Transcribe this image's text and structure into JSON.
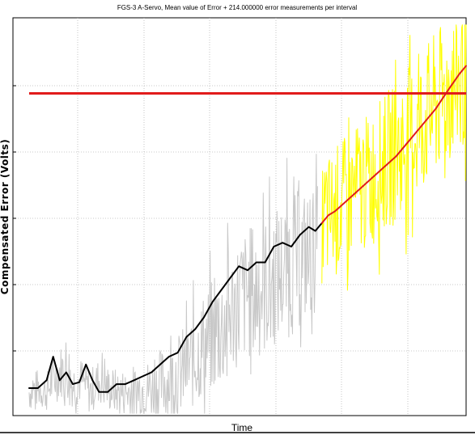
{
  "chart_data": {
    "type": "line",
    "title": "FGS-3 A-Servo, Mean value of Error + 214.000000 error measurements per interval",
    "xlabel": "Time",
    "ylabel": "Compensated Error (Volts)",
    "xlim": [
      0,
      1
    ],
    "ylim": [
      0,
      1
    ],
    "grid": true,
    "legend": "none",
    "colors": {
      "raw_early": "#c8c8c8",
      "raw_late": "#ffff00",
      "mean_early": "#000000",
      "mean_late": "#e11b1b",
      "reference": "#e11b1b",
      "grid": "#b8b8b8",
      "axes": "#000000"
    },
    "series": [
      {
        "role": "raw-early",
        "x": [
          0.0,
          0.02,
          0.04,
          0.06,
          0.08,
          0.1,
          0.12,
          0.14,
          0.16,
          0.18,
          0.2,
          0.22,
          0.24,
          0.26,
          0.28,
          0.3,
          0.32,
          0.34,
          0.36,
          0.38,
          0.4,
          0.42,
          0.44,
          0.46,
          0.48,
          0.5,
          0.52,
          0.54,
          0.56,
          0.58,
          0.6,
          0.62,
          0.64,
          0.66
        ],
        "y": [
          0.06,
          0.07,
          0.06,
          0.1,
          0.12,
          0.08,
          0.09,
          0.06,
          0.09,
          0.07,
          0.06,
          0.06,
          0.06,
          0.07,
          0.07,
          0.08,
          0.09,
          0.1,
          0.12,
          0.15,
          0.18,
          0.2,
          0.22,
          0.26,
          0.29,
          0.31,
          0.32,
          0.33,
          0.35,
          0.37,
          0.38,
          0.4,
          0.41,
          0.43
        ],
        "band": [
          0.05,
          0.05,
          0.05,
          0.07,
          0.07,
          0.06,
          0.06,
          0.06,
          0.06,
          0.06,
          0.06,
          0.06,
          0.07,
          0.07,
          0.08,
          0.09,
          0.1,
          0.11,
          0.12,
          0.13,
          0.14,
          0.15,
          0.16,
          0.16,
          0.17,
          0.17,
          0.18,
          0.18,
          0.18,
          0.18,
          0.18,
          0.18,
          0.17,
          0.16
        ]
      },
      {
        "role": "mean-early",
        "x": [
          0.0,
          0.02,
          0.04,
          0.055,
          0.07,
          0.085,
          0.1,
          0.115,
          0.13,
          0.145,
          0.16,
          0.18,
          0.2,
          0.22,
          0.24,
          0.26,
          0.28,
          0.3,
          0.32,
          0.34,
          0.36,
          0.38,
          0.4,
          0.42,
          0.44,
          0.46,
          0.48,
          0.5,
          0.52,
          0.54,
          0.56,
          0.58,
          0.6,
          0.62,
          0.64,
          0.655,
          0.67
        ],
        "y": [
          0.07,
          0.07,
          0.09,
          0.15,
          0.09,
          0.11,
          0.08,
          0.085,
          0.13,
          0.09,
          0.06,
          0.06,
          0.08,
          0.08,
          0.09,
          0.1,
          0.11,
          0.13,
          0.15,
          0.16,
          0.2,
          0.22,
          0.25,
          0.29,
          0.32,
          0.35,
          0.38,
          0.37,
          0.39,
          0.39,
          0.43,
          0.44,
          0.43,
          0.46,
          0.48,
          0.47,
          0.49
        ]
      },
      {
        "role": "raw-late",
        "x": [
          0.67,
          0.7,
          0.73,
          0.76,
          0.79,
          0.82,
          0.85,
          0.88,
          0.91,
          0.94,
          0.97,
          1.0
        ],
        "y": [
          0.49,
          0.52,
          0.55,
          0.58,
          0.61,
          0.65,
          0.68,
          0.72,
          0.76,
          0.8,
          0.84,
          0.89
        ],
        "band": [
          0.16,
          0.17,
          0.17,
          0.17,
          0.18,
          0.18,
          0.18,
          0.19,
          0.19,
          0.19,
          0.2,
          0.2
        ]
      },
      {
        "role": "mean-late",
        "x": [
          0.67,
          0.685,
          0.7,
          0.72,
          0.75,
          0.78,
          0.81,
          0.84,
          0.87,
          0.9,
          0.93,
          0.96,
          0.985,
          1.0
        ],
        "y": [
          0.49,
          0.51,
          0.52,
          0.54,
          0.57,
          0.6,
          0.63,
          0.66,
          0.7,
          0.74,
          0.78,
          0.83,
          0.87,
          0.89
        ]
      },
      {
        "role": "reference",
        "x": [
          0.0,
          1.0
        ],
        "y": [
          0.82,
          0.82
        ]
      }
    ]
  }
}
